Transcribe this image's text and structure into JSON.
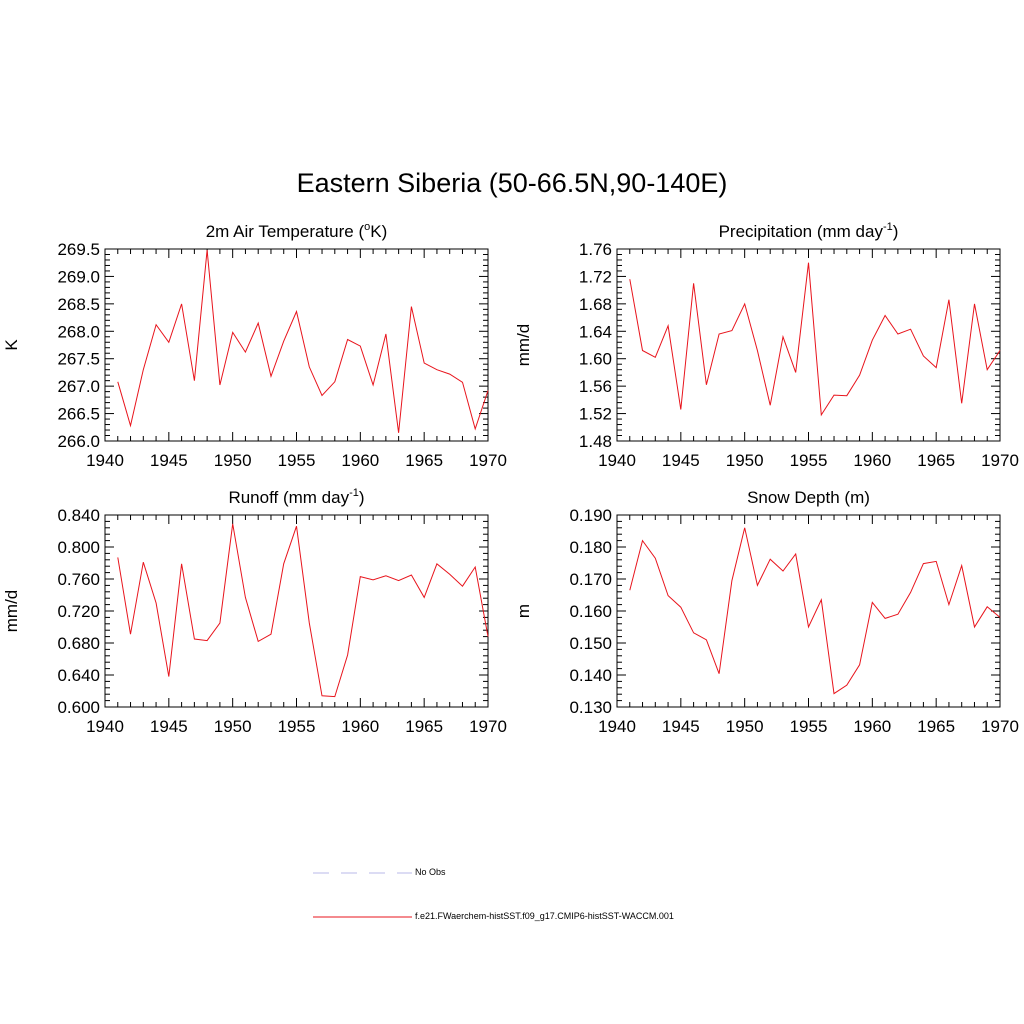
{
  "title": "Eastern Siberia (50-66.5N,90-140E)",
  "line_color": "#e8141c",
  "obs_color": "#b8b8e8",
  "legend": {
    "obs_label": "No Obs",
    "model_label": "f.e21.FWaerchem-histSST.f09_g17.CMIP6-histSST-WACCM.001"
  },
  "chart_data": [
    {
      "type": "line",
      "title": "2m Air Temperature (",
      "title_sup": "o",
      "title_end": "K)",
      "ylabel": "K",
      "xlim": [
        1940,
        1970
      ],
      "ylim": [
        266.0,
        269.5
      ],
      "xticks": [
        "1940",
        "1945",
        "1950",
        "1955",
        "1960",
        "1965",
        "1970"
      ],
      "yticks": [
        "266.0",
        "266.5",
        "267.0",
        "267.5",
        "268.0",
        "268.5",
        "269.0",
        "269.5"
      ],
      "x": [
        1941,
        1942,
        1943,
        1944,
        1945,
        1946,
        1947,
        1948,
        1949,
        1950,
        1951,
        1952,
        1953,
        1954,
        1955,
        1956,
        1957,
        1958,
        1959,
        1960,
        1961,
        1962,
        1963,
        1964,
        1965,
        1966,
        1967,
        1968,
        1969,
        1970
      ],
      "values": [
        267.08,
        266.28,
        267.3,
        268.12,
        267.8,
        268.5,
        267.1,
        269.48,
        267.02,
        267.98,
        267.62,
        268.15,
        267.18,
        267.82,
        268.36,
        267.35,
        266.83,
        267.08,
        267.85,
        267.73,
        267.02,
        267.95,
        266.15,
        268.45,
        267.42,
        267.3,
        267.22,
        267.07,
        266.22,
        266.92
      ]
    },
    {
      "type": "line",
      "title": "Precipitation (mm day",
      "title_sup": "-1",
      "title_end": ")",
      "ylabel": "mm/d",
      "xlim": [
        1940,
        1970
      ],
      "ylim": [
        1.48,
        1.76
      ],
      "xticks": [
        "1940",
        "1945",
        "1950",
        "1955",
        "1960",
        "1965",
        "1970"
      ],
      "yticks": [
        "1.48",
        "1.52",
        "1.56",
        "1.60",
        "1.64",
        "1.68",
        "1.72",
        "1.76"
      ],
      "x": [
        1941,
        1942,
        1943,
        1944,
        1945,
        1946,
        1947,
        1948,
        1949,
        1950,
        1951,
        1952,
        1953,
        1954,
        1955,
        1956,
        1957,
        1958,
        1959,
        1960,
        1961,
        1962,
        1963,
        1964,
        1965,
        1966,
        1967,
        1968,
        1969,
        1970
      ],
      "values": [
        1.716,
        1.612,
        1.602,
        1.648,
        1.526,
        1.71,
        1.562,
        1.636,
        1.641,
        1.68,
        1.612,
        1.532,
        1.632,
        1.58,
        1.74,
        1.518,
        1.547,
        1.546,
        1.576,
        1.627,
        1.663,
        1.636,
        1.643,
        1.604,
        1.587,
        1.686,
        1.535,
        1.68,
        1.584,
        1.612
      ]
    },
    {
      "type": "line",
      "title": "Runoff (mm day",
      "title_sup": "-1",
      "title_end": ")",
      "ylabel": "mm/d",
      "xlim": [
        1940,
        1970
      ],
      "ylim": [
        0.6,
        0.84
      ],
      "xticks": [
        "1940",
        "1945",
        "1950",
        "1955",
        "1960",
        "1965",
        "1970"
      ],
      "yticks": [
        "0.600",
        "0.640",
        "0.680",
        "0.720",
        "0.760",
        "0.800",
        "0.840"
      ],
      "x": [
        1941,
        1942,
        1943,
        1944,
        1945,
        1946,
        1947,
        1948,
        1949,
        1950,
        1951,
        1952,
        1953,
        1954,
        1955,
        1956,
        1957,
        1958,
        1959,
        1960,
        1961,
        1962,
        1963,
        1964,
        1965,
        1966,
        1967,
        1968,
        1969,
        1970
      ],
      "values": [
        0.787,
        0.691,
        0.781,
        0.73,
        0.638,
        0.779,
        0.685,
        0.683,
        0.705,
        0.829,
        0.737,
        0.682,
        0.691,
        0.779,
        0.826,
        0.705,
        0.614,
        0.613,
        0.665,
        0.763,
        0.759,
        0.764,
        0.758,
        0.765,
        0.737,
        0.779,
        0.766,
        0.751,
        0.775,
        0.688
      ]
    },
    {
      "type": "line",
      "title": "Snow Depth (m)",
      "title_sup": "",
      "title_end": "",
      "ylabel": "m",
      "xlim": [
        1940,
        1970
      ],
      "ylim": [
        0.13,
        0.19
      ],
      "xticks": [
        "1940",
        "1945",
        "1950",
        "1955",
        "1960",
        "1965",
        "1970"
      ],
      "yticks": [
        "0.130",
        "0.140",
        "0.150",
        "0.160",
        "0.170",
        "0.180",
        "0.190"
      ],
      "x": [
        1941,
        1942,
        1943,
        1944,
        1945,
        1946,
        1947,
        1948,
        1949,
        1950,
        1951,
        1952,
        1953,
        1954,
        1955,
        1956,
        1957,
        1958,
        1959,
        1960,
        1961,
        1962,
        1963,
        1964,
        1965,
        1966,
        1967,
        1968,
        1969,
        1970
      ],
      "values": [
        0.1665,
        0.182,
        0.1765,
        0.1648,
        0.1612,
        0.1532,
        0.151,
        0.1404,
        0.1695,
        0.186,
        0.168,
        0.1762,
        0.1725,
        0.1778,
        0.155,
        0.1635,
        0.1342,
        0.1368,
        0.1432,
        0.1627,
        0.1577,
        0.159,
        0.1658,
        0.1748,
        0.1755,
        0.162,
        0.1742,
        0.155,
        0.1613,
        0.158
      ]
    }
  ]
}
